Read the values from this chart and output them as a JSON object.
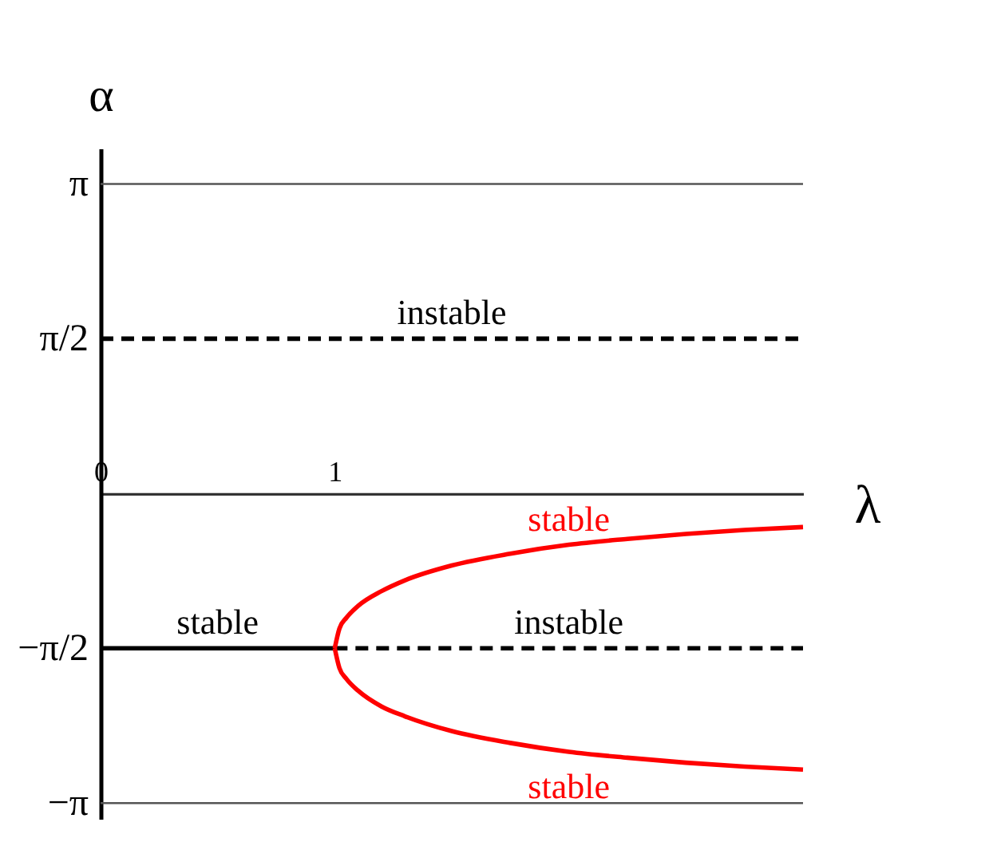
{
  "chart_data": {
    "type": "line",
    "xlabel": "λ",
    "ylabel": "α",
    "xlim": [
      0,
      3
    ],
    "xticks": [
      0,
      1
    ],
    "ylim": [
      -3.3,
      3.5
    ],
    "yticks": [
      {
        "value": 3.14,
        "label": "π"
      },
      {
        "value": 1.57,
        "label": "π/2"
      },
      {
        "value": 0,
        "label": null
      },
      {
        "value": -1.57,
        "label": "−π/2"
      },
      {
        "value": -3.14,
        "label": "−π"
      }
    ],
    "ref_lines": [
      {
        "axis": "y",
        "value": 3.14,
        "color": "#555555"
      },
      {
        "axis": "y",
        "value": -3.14,
        "color": "#555555"
      }
    ],
    "series": [
      {
        "name": "instable",
        "color": "#000000",
        "line_style": "dashed",
        "x": [
          0,
          3
        ],
        "values": [
          1.57,
          1.57
        ]
      },
      {
        "name": "stable",
        "color": "#000000",
        "line_style": "solid",
        "x": [
          0,
          1
        ],
        "values": [
          -1.57,
          -1.57
        ]
      },
      {
        "name": "instable",
        "color": "#000000",
        "line_style": "dashed",
        "x": [
          1,
          3
        ],
        "values": [
          -1.57,
          -1.57
        ]
      },
      {
        "name": "stable",
        "color": "#ff0000",
        "line_style": "solid",
        "x": [
          1,
          1.02,
          1.05,
          1.1,
          1.2,
          1.3,
          1.5,
          1.75,
          2,
          2.25,
          2.5,
          2.75,
          3
        ],
        "values": [
          -1.57,
          -1.37,
          -1.26,
          -1.14,
          -0.99,
          -0.88,
          -0.73,
          -0.61,
          -0.52,
          -0.46,
          -0.41,
          -0.37,
          -0.34
        ]
      },
      {
        "name": "stable",
        "color": "#ff0000",
        "line_style": "solid",
        "x": [
          1,
          1.02,
          1.05,
          1.1,
          1.2,
          1.3,
          1.5,
          1.75,
          2,
          2.25,
          2.5,
          2.75,
          3
        ],
        "values": [
          -1.57,
          -1.77,
          -1.88,
          -2.0,
          -2.16,
          -2.26,
          -2.41,
          -2.53,
          -2.62,
          -2.68,
          -2.73,
          -2.77,
          -2.8
        ]
      }
    ]
  }
}
